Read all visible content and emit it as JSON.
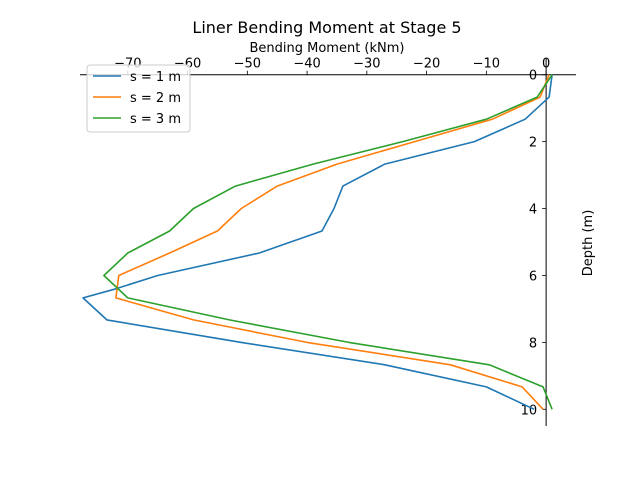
{
  "chart_data": {
    "type": "line",
    "title": "Liner Bending Moment at Stage 5",
    "xlabel": "Bending Moment (kNm)",
    "ylabel": "Depth (m)",
    "xlim": [
      -78,
      5
    ],
    "ylim": [
      10.5,
      -0.5
    ],
    "x_ticks": [
      -70,
      -60,
      -50,
      -40,
      -30,
      -20,
      -10,
      0
    ],
    "x_tick_labels": [
      "−70",
      "−60",
      "−50",
      "−40",
      "−30",
      "−20",
      "−10",
      "0"
    ],
    "y_ticks": [
      0,
      2,
      4,
      6,
      8,
      10
    ],
    "y_tick_labels": [
      "0",
      "2",
      "4",
      "6",
      "8",
      "10"
    ],
    "grid": false,
    "legend_position": "top-left",
    "x_axis_position": "top",
    "y_axis_position": "right",
    "series": [
      {
        "name": "s = 1 m",
        "color": "#1f77b4",
        "points": [
          [
            1.0,
            0.0
          ],
          [
            0.5,
            0.67
          ],
          [
            -3.5,
            1.33
          ],
          [
            -12.0,
            2.0
          ],
          [
            -27.0,
            2.67
          ],
          [
            -34.0,
            3.33
          ],
          [
            -35.5,
            4.0
          ],
          [
            -37.5,
            4.67
          ],
          [
            -48.0,
            5.33
          ],
          [
            -65.0,
            6.0
          ],
          [
            -72.0,
            6.4
          ],
          [
            -77.5,
            6.67
          ],
          [
            -73.5,
            7.33
          ],
          [
            -51.0,
            8.0
          ],
          [
            -27.0,
            8.67
          ],
          [
            -10.0,
            9.33
          ],
          [
            -2.0,
            10.0
          ]
        ]
      },
      {
        "name": "s = 2 m",
        "color": "#ff7f0e",
        "points": [
          [
            0.5,
            0.0
          ],
          [
            -1.0,
            0.67
          ],
          [
            -9.0,
            1.33
          ],
          [
            -22.0,
            2.0
          ],
          [
            -35.0,
            2.67
          ],
          [
            -45.0,
            3.33
          ],
          [
            -51.0,
            4.0
          ],
          [
            -55.0,
            4.67
          ],
          [
            -63.0,
            5.33
          ],
          [
            -71.5,
            6.0
          ],
          [
            -72.0,
            6.67
          ],
          [
            -59.0,
            7.33
          ],
          [
            -40.0,
            8.0
          ],
          [
            -16.0,
            8.67
          ],
          [
            -4.0,
            9.33
          ],
          [
            -0.5,
            10.0
          ]
        ]
      },
      {
        "name": "s = 3 m",
        "color": "#2ca02c",
        "points": [
          [
            1.0,
            0.0
          ],
          [
            -1.5,
            0.67
          ],
          [
            -10.0,
            1.33
          ],
          [
            -24.0,
            2.0
          ],
          [
            -39.0,
            2.67
          ],
          [
            -52.0,
            3.33
          ],
          [
            -59.0,
            4.0
          ],
          [
            -63.0,
            4.67
          ],
          [
            -70.0,
            5.33
          ],
          [
            -74.0,
            6.0
          ],
          [
            -70.0,
            6.67
          ],
          [
            -53.0,
            7.33
          ],
          [
            -33.0,
            8.0
          ],
          [
            -9.5,
            8.67
          ],
          [
            -0.5,
            9.33
          ],
          [
            1.0,
            10.0
          ]
        ]
      }
    ]
  }
}
